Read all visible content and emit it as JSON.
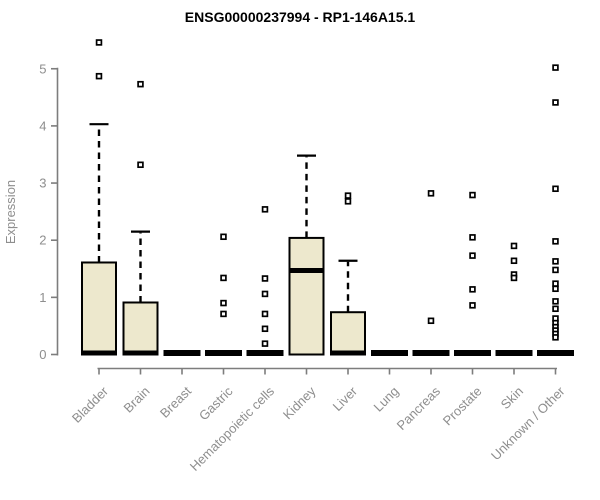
{
  "chart_data": {
    "type": "boxplot",
    "title": "ENSG00000237994 - RP1-146A15.1",
    "ylabel": "Expression",
    "xlabel": "",
    "ylim": [
      0,
      5.6
    ],
    "yticks": [
      0,
      1,
      2,
      3,
      4,
      5
    ],
    "grid": false,
    "legend": false,
    "categories": [
      "Bladder",
      "Brain",
      "Breast",
      "Gastric",
      "Hematopoietic cells",
      "Kidney",
      "Liver",
      "Lung",
      "Pancreas",
      "Prostate",
      "Skin",
      "Unknown / Other"
    ],
    "boxes": [
      {
        "category": "Bladder",
        "q1": 0,
        "median": 0,
        "q3": 1.61,
        "whisker_low": 0,
        "whisker_high": 4.03,
        "outliers": [
          5.46,
          4.87
        ]
      },
      {
        "category": "Brain",
        "q1": 0,
        "median": 0,
        "q3": 0.91,
        "whisker_low": 0,
        "whisker_high": 2.15,
        "outliers": [
          4.73,
          3.32
        ]
      },
      {
        "category": "Breast",
        "q1": 0,
        "median": 0,
        "q3": 0,
        "whisker_low": 0,
        "whisker_high": 0,
        "outliers": []
      },
      {
        "category": "Gastric",
        "q1": 0,
        "median": 0,
        "q3": 0,
        "whisker_low": 0,
        "whisker_high": 0,
        "outliers": [
          2.06,
          1.34,
          0.9,
          0.71
        ]
      },
      {
        "category": "Hematopoietic cells",
        "q1": 0,
        "median": 0,
        "q3": 0,
        "whisker_low": 0,
        "whisker_high": 0,
        "outliers": [
          2.54,
          1.33,
          1.06,
          0.71,
          0.45,
          0.19
        ]
      },
      {
        "category": "Kidney",
        "q1": 0,
        "median": 1.47,
        "q3": 2.04,
        "whisker_low": 0,
        "whisker_high": 3.48,
        "outliers": []
      },
      {
        "category": "Liver",
        "q1": 0,
        "median": 0,
        "q3": 0.74,
        "whisker_low": 0,
        "whisker_high": 1.64,
        "outliers": [
          2.78,
          2.68
        ]
      },
      {
        "category": "Lung",
        "q1": 0,
        "median": 0,
        "q3": 0,
        "whisker_low": 0,
        "whisker_high": 0,
        "outliers": []
      },
      {
        "category": "Pancreas",
        "q1": 0,
        "median": 0,
        "q3": 0,
        "whisker_low": 0,
        "whisker_high": 0,
        "outliers": [
          2.82,
          0.59
        ]
      },
      {
        "category": "Prostate",
        "q1": 0,
        "median": 0,
        "q3": 0,
        "whisker_low": 0,
        "whisker_high": 0,
        "outliers": [
          2.79,
          2.05,
          1.73,
          1.14,
          0.86
        ]
      },
      {
        "category": "Skin",
        "q1": 0,
        "median": 0,
        "q3": 0,
        "whisker_low": 0,
        "whisker_high": 0,
        "outliers": [
          1.9,
          1.64,
          1.4,
          1.34
        ]
      },
      {
        "category": "Unknown / Other",
        "q1": 0,
        "median": 0,
        "q3": 0,
        "whisker_low": 0,
        "whisker_high": 0,
        "outliers": [
          5.02,
          4.41,
          2.9,
          1.98,
          1.63,
          1.48,
          1.24,
          1.15,
          0.93,
          0.8,
          0.63,
          0.55,
          0.48,
          0.42,
          0.36,
          0.3
        ]
      }
    ],
    "colors": {
      "box_fill": "#EDE8CD",
      "box_stroke": "#000000",
      "median": "#000000",
      "whisker": "#000000",
      "outlier_stroke": "#000000",
      "axis": "#7d7d7d",
      "tick_label": "#8e8e8e",
      "title": "#000000",
      "background": "#ffffff"
    }
  }
}
